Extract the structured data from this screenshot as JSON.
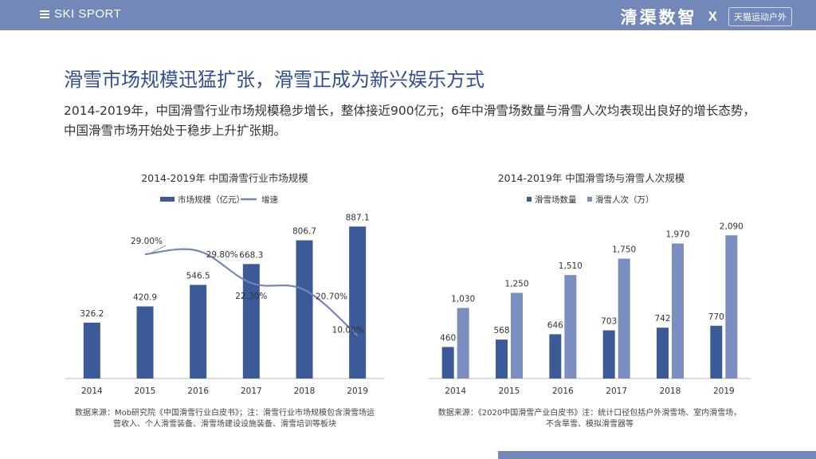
{
  "header": {
    "brand_left": "SKI SPORT",
    "brand_right": "清渠数智",
    "separator": "X",
    "partner": "天猫运动户外"
  },
  "title": "滑雪市场规模迅猛扩张，滑雪正成为新兴娱乐方式",
  "subtitle": "2014-2019年，中国滑雪行业市场规模稳步增长，整体接近900亿元；6年中滑雪场数量与滑雪人次均表现出良好的增长态势，中国滑雪市场开始处于稳步上升扩张期。",
  "chart_data": [
    {
      "type": "bar",
      "title": "2014-2019年 中国滑雪行业市场规模",
      "categories": [
        "2014",
        "2015",
        "2016",
        "2017",
        "2018",
        "2019"
      ],
      "series": [
        {
          "name": "市场规模（亿元）",
          "type": "bar",
          "values": [
            326.2,
            420.9,
            546.5,
            668.3,
            806.7,
            887.1
          ],
          "labels": [
            "326.2",
            "420.9",
            "546.5",
            "668.3",
            "806.7",
            "887.1"
          ],
          "color": "#3d5a98"
        },
        {
          "name": "增速",
          "type": "line",
          "values": [
            null,
            29.0,
            29.8,
            22.3,
            20.7,
            10.0
          ],
          "labels": [
            "",
            "29.00%",
            "29.80%",
            "22.30%",
            "20.70%",
            "10.00%"
          ],
          "color": "#7388b8"
        }
      ],
      "ylim": [
        0,
        1000
      ],
      "rate_ylim": [
        0,
        40
      ],
      "grid": false,
      "legend": "top",
      "source": [
        "数据来源：Mob研究院《中国滑雪行业白皮书》；注：滑雪行业市场规模包含滑雪场运",
        "营收入、个人滑雪装备、滑雪场建设设施装备、滑雪培训等板块"
      ]
    },
    {
      "type": "bar",
      "title": "2014-2019年 中国滑雪场与滑雪人次规模",
      "categories": [
        "2014",
        "2015",
        "2016",
        "2017",
        "2018",
        "2019"
      ],
      "series": [
        {
          "name": "滑雪场数量",
          "values": [
            460,
            568,
            646,
            703,
            742,
            770
          ],
          "labels": [
            "460",
            "568",
            "646",
            "703",
            "742",
            "770"
          ],
          "color": "#3d5a98"
        },
        {
          "name": "滑雪人次（万）",
          "values": [
            1030,
            1250,
            1510,
            1750,
            1970,
            2090
          ],
          "labels": [
            "1,030",
            "1,250",
            "1,510",
            "1,750",
            "1,970",
            "2,090"
          ],
          "color": "#7a8fc0"
        }
      ],
      "ylim": [
        0,
        2500
      ],
      "grid": false,
      "legend": "top",
      "source": [
        "数据来源：《2020中国滑雪产业白皮书》注：统计口径包括户外滑雪场、室内滑雪场，",
        "不含旱雪、模拟滑雪器等"
      ]
    }
  ]
}
